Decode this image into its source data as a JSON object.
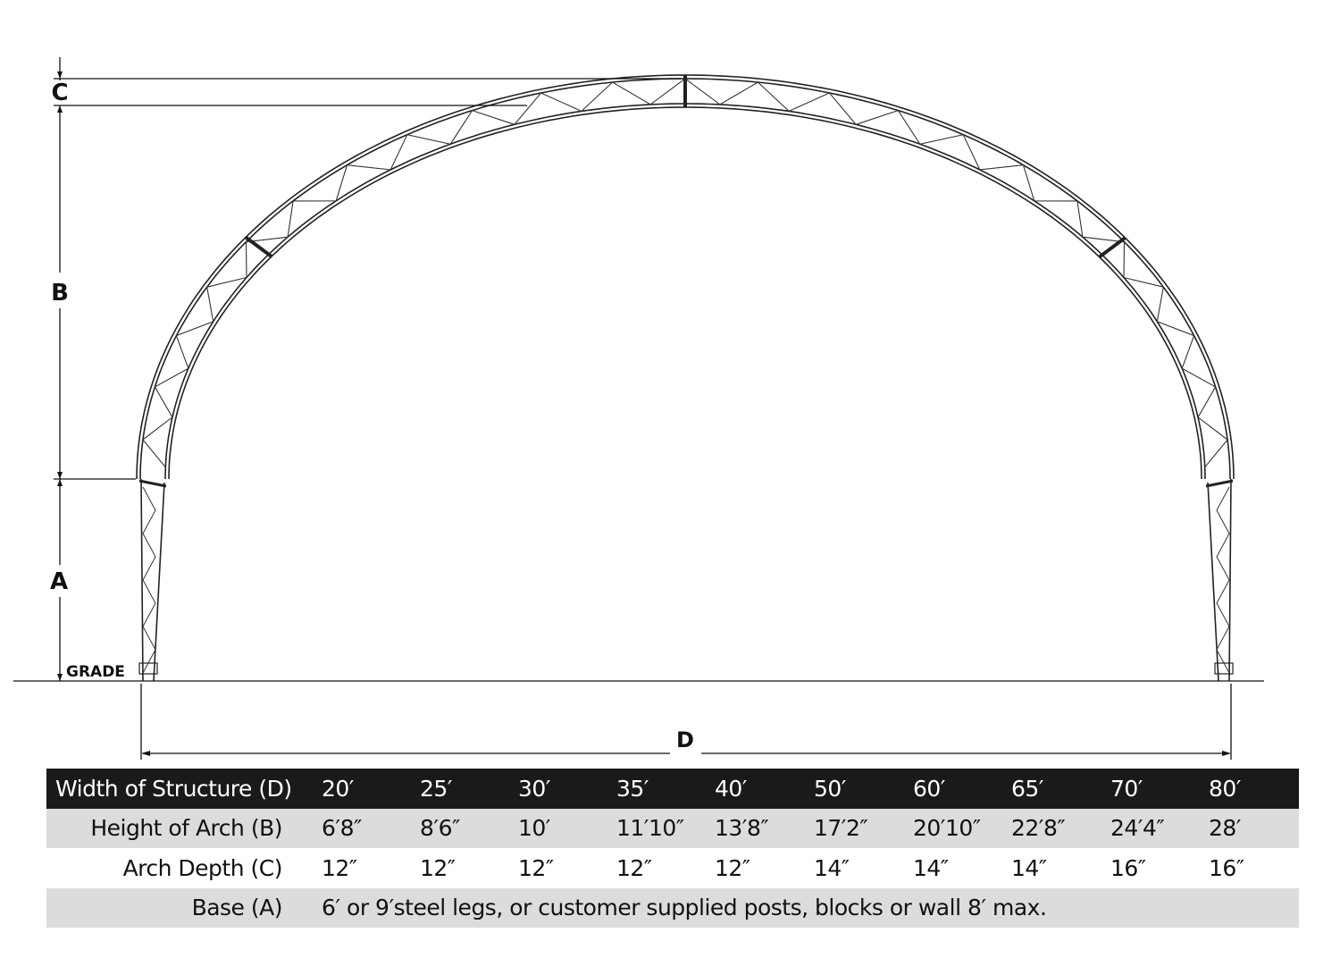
{
  "labels": {
    "c": "C",
    "b": "B",
    "a": "A",
    "d": "D",
    "grade": "GRADE"
  },
  "table": {
    "headers": [
      "Width of Structure (D)",
      "Height of Arch (B)",
      "Arch Depth (C)",
      "Base (A)"
    ],
    "width": [
      "20′",
      "25′",
      "30′",
      "35′",
      "40′",
      "50′",
      "60′",
      "65′",
      "70′",
      "80′"
    ],
    "height": [
      "6′8″",
      "8′6″",
      "10′",
      "11′10″",
      "13′8″",
      "17′2″",
      "20′10″",
      "22′8″",
      "24′4″",
      "28′"
    ],
    "depth": [
      "12″",
      "12″",
      "12″",
      "12″",
      "12″",
      "14″",
      "14″",
      "14″",
      "16″",
      "16″"
    ],
    "base": "6′ or 9′steel legs, or customer supplied posts, blocks or wall 8′ max."
  }
}
